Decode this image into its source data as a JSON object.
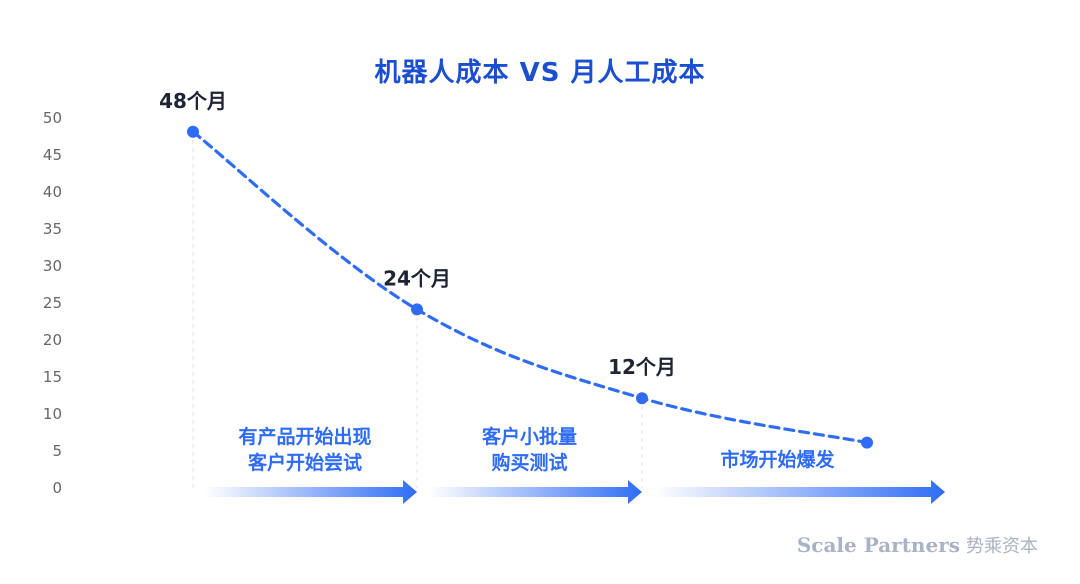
{
  "chart_data": {
    "type": "line",
    "title": "机器人成本 VS 月人工成本",
    "xlabel": "",
    "ylabel": "",
    "ylim": [
      0,
      50
    ],
    "yticks": [
      "0",
      "5",
      "10",
      "15",
      "20",
      "25",
      "30",
      "35",
      "40",
      "45",
      "50"
    ],
    "grid": false,
    "series": [
      {
        "values": [
          48,
          24,
          12,
          6
        ],
        "labels": [
          "48个月",
          "24个月",
          "12个月",
          ""
        ],
        "color": "#2f6cf5",
        "style": "dashed"
      }
    ],
    "phases": [
      {
        "lines": [
          "有产品开始出现",
          "客户开始尝试"
        ]
      },
      {
        "lines": [
          "客户小批量",
          "购买测试"
        ]
      },
      {
        "lines": [
          "市场开始爆发"
        ]
      }
    ],
    "colors": {
      "title": "#1a4fd0",
      "line": "#2f6cf5",
      "phase_text": "#2f6cf5",
      "axis_text": "#666666",
      "point_label": "#1d2433"
    }
  },
  "watermark": {
    "en": "Scale Partners",
    "cn": "势乘资本"
  }
}
